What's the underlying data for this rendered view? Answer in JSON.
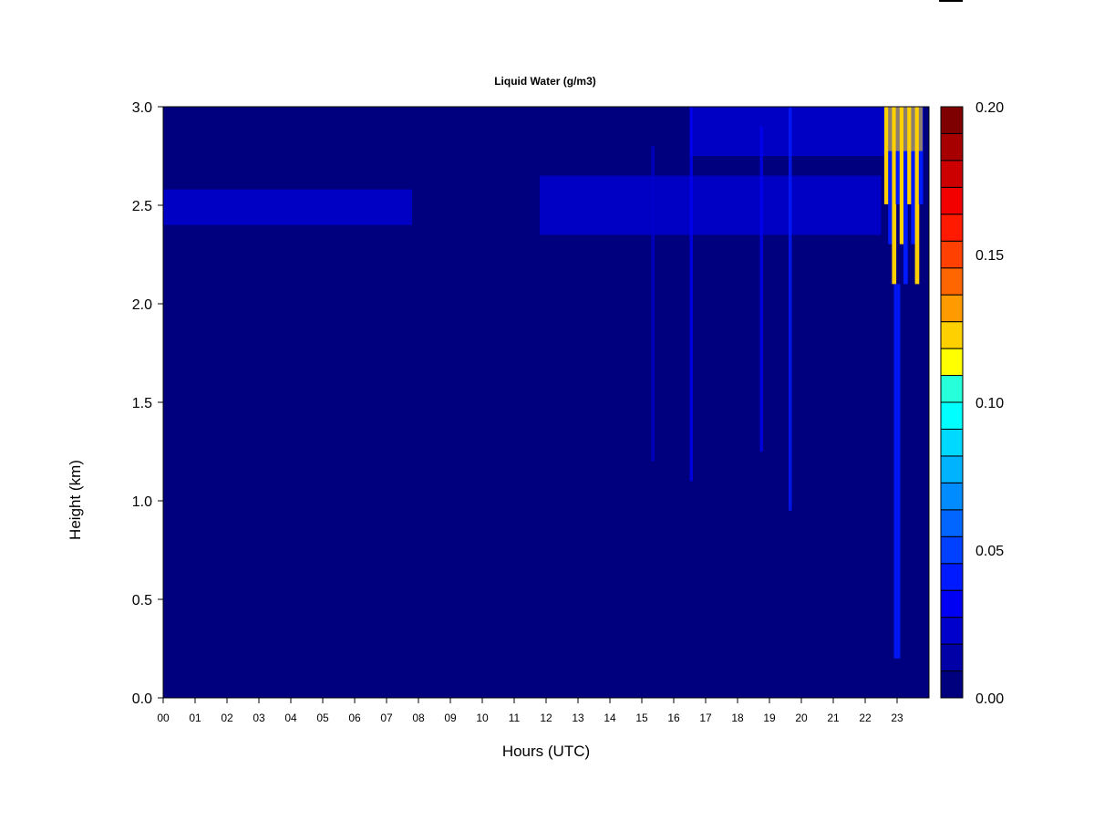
{
  "chart_data": {
    "type": "heatmap",
    "title": "Liquid Water (g/m3)",
    "xlabel": "Hours (UTC)",
    "ylabel": "Height (km)",
    "x_ticks": [
      "00",
      "01",
      "02",
      "03",
      "04",
      "05",
      "06",
      "07",
      "08",
      "09",
      "10",
      "11",
      "12",
      "13",
      "14",
      "15",
      "16",
      "17",
      "18",
      "19",
      "20",
      "21",
      "22",
      "23"
    ],
    "y_ticks": [
      "0.0",
      "0.5",
      "1.0",
      "1.5",
      "2.0",
      "2.5",
      "3.0"
    ],
    "xlim": [
      0,
      24
    ],
    "ylim": [
      0.0,
      3.0
    ],
    "colorbar": {
      "ticks": [
        "0.00",
        "0.05",
        "0.10",
        "0.15",
        "0.20"
      ],
      "range": [
        0.0,
        0.2
      ],
      "levels": 20,
      "colors": [
        "#00007F",
        "#0000A6",
        "#0000CC",
        "#0000F2",
        "#001AFF",
        "#0040FF",
        "#0066FF",
        "#008CFF",
        "#00B3FF",
        "#00D9FF",
        "#00FFFF",
        "#26FFD9",
        "#4DFFB3",
        "#73FF8C",
        "#99FF66",
        "#BFFF40",
        "#E6FF1A",
        "#FFFF00",
        "#FFD900",
        "#FFB300"
      ],
      "top_colors": [
        "#FF8C00",
        "#FF6600",
        "#FF4000",
        "#FF1A00",
        "#F20000",
        "#CC0000",
        "#A60000",
        "#7F0000"
      ]
    },
    "background_value": 0.0,
    "features": [
      {
        "name": "cloud-layer",
        "x_range": [
          0.0,
          7.8
        ],
        "y_range": [
          2.4,
          2.58
        ],
        "value": 0.02
      },
      {
        "name": "cloud-layer",
        "x_range": [
          11.8,
          22.5
        ],
        "y_range": [
          2.35,
          2.65
        ],
        "value": 0.025
      },
      {
        "name": "upper-cloud",
        "x_range": [
          16.5,
          23.8
        ],
        "y_range": [
          2.75,
          3.0
        ],
        "value": 0.02
      },
      {
        "name": "precip-column",
        "x_range": [
          22.6,
          23.8
        ],
        "y_range": [
          2.1,
          3.0
        ],
        "value": 0.12
      },
      {
        "name": "precip-column",
        "x_range": [
          22.9,
          23.1
        ],
        "y_range": [
          0.2,
          2.1
        ],
        "value": 0.04
      },
      {
        "name": "streak",
        "x_range": [
          19.6,
          19.7
        ],
        "y_range": [
          0.95,
          3.0
        ],
        "value": 0.04
      },
      {
        "name": "streak",
        "x_range": [
          18.7,
          18.8
        ],
        "y_range": [
          1.25,
          2.9
        ],
        "value": 0.03
      },
      {
        "name": "streak",
        "x_range": [
          16.5,
          16.6
        ],
        "y_range": [
          1.1,
          3.0
        ],
        "value": 0.03
      },
      {
        "name": "streak",
        "x_range": [
          15.3,
          15.4
        ],
        "y_range": [
          1.2,
          2.8
        ],
        "value": 0.025
      }
    ]
  }
}
